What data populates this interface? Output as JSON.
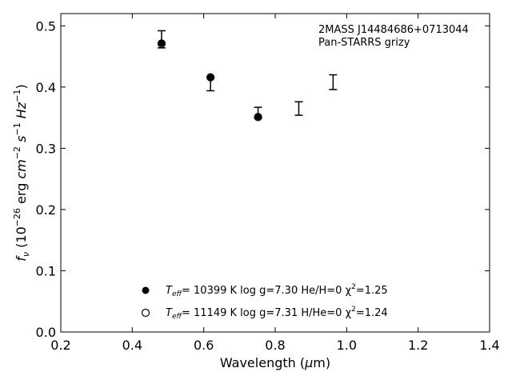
{
  "chart_data": {
    "type": "scatter",
    "title": "",
    "xlabel": "Wavelength (μm)",
    "ylabel": "f_ν (10^−26 erg cm^−2 s^−1 Hz^−1)",
    "xlim": [
      0.2,
      1.4
    ],
    "ylim": [
      0.0,
      0.52
    ],
    "xticks": [
      0.2,
      0.4,
      0.6,
      0.8,
      1.0,
      1.2,
      1.4
    ],
    "xtick_labels": [
      "0.2",
      "0.4",
      "0.6",
      "0.8",
      "1.0",
      "1.2",
      "1.4"
    ],
    "yticks": [
      0.0,
      0.1,
      0.2,
      0.3,
      0.4,
      0.5
    ],
    "ytick_labels": [
      "0.0",
      "0.1",
      "0.2",
      "0.3",
      "0.4",
      "0.5"
    ],
    "grid": false,
    "annotation": {
      "line1": "2MASS J14484686+0713044",
      "line2": "Pan-STARRS grizy"
    },
    "observed": [
      {
        "x": 0.482,
        "y": 0.478,
        "yerr": 0.014
      },
      {
        "x": 0.619,
        "y": 0.405,
        "yerr": 0.011
      },
      {
        "x": 0.752,
        "y": 0.358,
        "yerr": 0.009
      },
      {
        "x": 0.866,
        "y": 0.365,
        "yerr": 0.011
      },
      {
        "x": 0.962,
        "y": 0.408,
        "yerr": 0.012
      }
    ],
    "series": [
      {
        "marker": "filled",
        "label_parts": {
          "name": "T",
          "sub": "eff",
          "rest": "= 10399 K  log g=7.30  He/H=0  χ",
          "sup": "2",
          "end": "=1.25"
        },
        "points": [
          {
            "x": 0.482,
            "y": 0.472
          },
          {
            "x": 0.619,
            "y": 0.416
          },
          {
            "x": 0.752,
            "y": 0.352
          }
        ]
      },
      {
        "marker": "open",
        "label_parts": {
          "name": "T",
          "sub": "eff",
          "rest": "= 11149 K  log g=7.31  H/He=0  χ",
          "sup": "2",
          "end": "=1.24"
        },
        "points": [
          {
            "x": 0.482,
            "y": 0.471
          },
          {
            "x": 0.619,
            "y": 0.416
          },
          {
            "x": 0.752,
            "y": 0.351
          }
        ]
      }
    ]
  }
}
